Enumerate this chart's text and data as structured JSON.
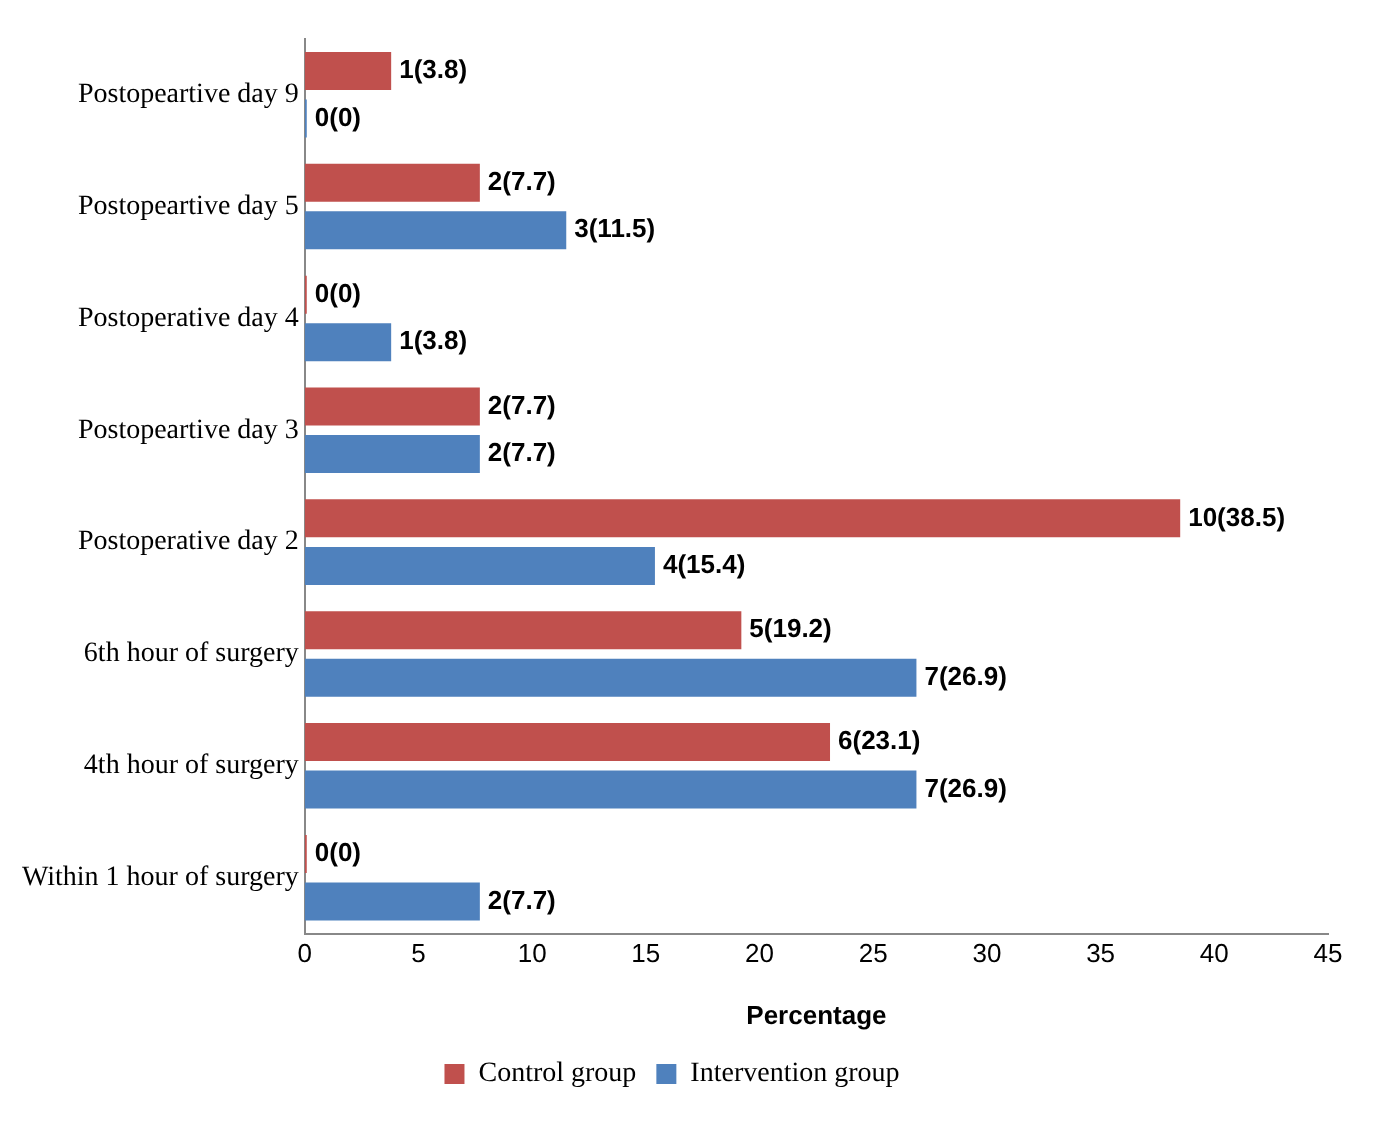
{
  "chart_data": {
    "type": "bar",
    "orientation": "horizontal",
    "categories": [
      "Postopeartive day 9",
      "Postopeartive day 5",
      "Postoperative day 4",
      "Postopeartive day 3",
      "Postoperative day 2",
      "6th hour of surgery",
      "4th hour of surgery",
      "Within 1 hour of surgery"
    ],
    "series": [
      {
        "name": "Control group",
        "color": "#c0504d",
        "values": [
          3.8,
          7.7,
          0,
          7.7,
          38.5,
          19.2,
          23.1,
          0
        ],
        "value_labels": [
          "1(3.8)",
          "2(7.7)",
          "0(0)",
          "2(7.7)",
          "10(38.5)",
          "5(19.2)",
          "6(23.1)",
          "0(0)"
        ]
      },
      {
        "name": "Intervention group",
        "color": "#4f81bd",
        "values": [
          0,
          11.5,
          3.8,
          7.7,
          15.4,
          26.9,
          26.9,
          7.7
        ],
        "value_labels": [
          "0(0)",
          "3(11.5)",
          "1(3.8)",
          "2(7.7)",
          "4(15.4)",
          "7(26.9)",
          "7(26.9)",
          "2(7.7)"
        ]
      }
    ],
    "xlabel": "Percentage",
    "xlim": [
      0,
      45
    ],
    "xticks": [
      0,
      5,
      10,
      15,
      20,
      25,
      30,
      35,
      40,
      45
    ],
    "grid": false,
    "legend": "bottom"
  }
}
